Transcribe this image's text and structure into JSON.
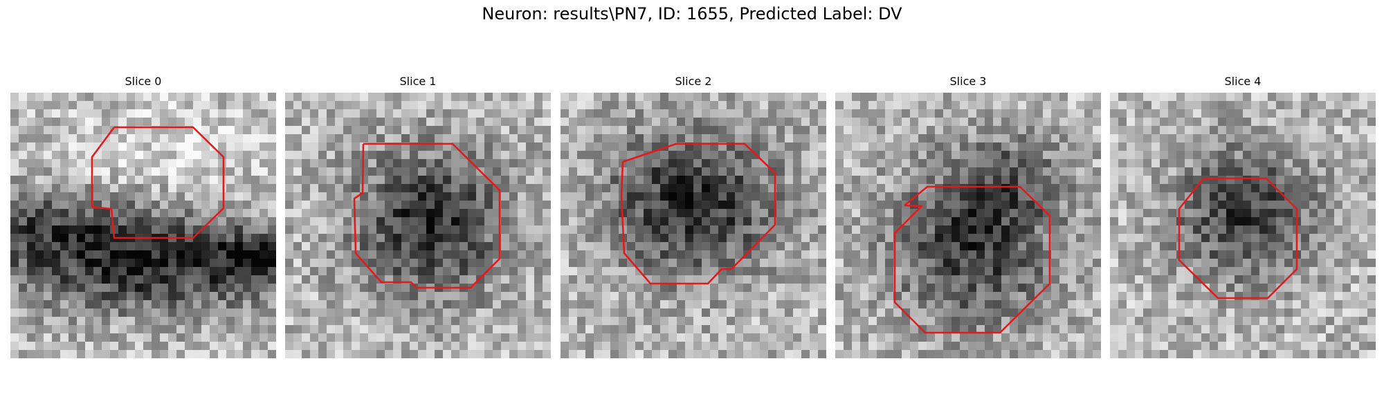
{
  "suptitle": "Neuron: results\\PN7, ID: 1655, Predicted Label: DV",
  "colors": {
    "outline": "#e31a1c",
    "background": "#ffffff"
  },
  "panels": [
    {
      "title": "Slice 0"
    },
    {
      "title": "Slice 1"
    },
    {
      "title": "Slice 2"
    },
    {
      "title": "Slice 3"
    },
    {
      "title": "Slice 4"
    }
  ]
}
